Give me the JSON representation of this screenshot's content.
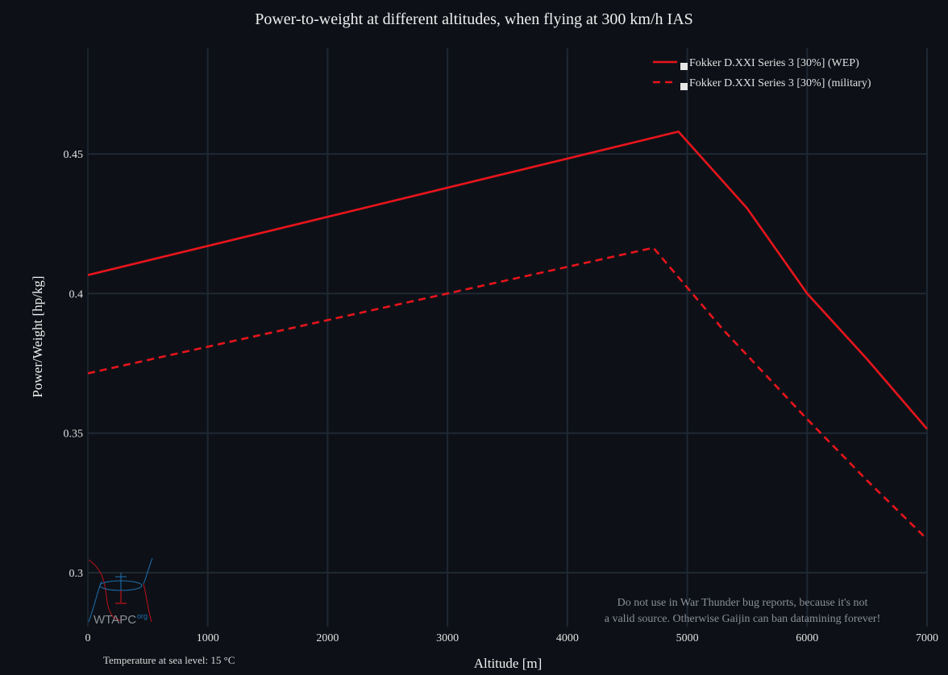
{
  "chart_data": {
    "type": "line",
    "title": "Power-to-weight at different altitudes, when flying at 300 km/h IAS",
    "xlabel": "Altitude [m]",
    "ylabel": "Power/Weight [hp/kg]",
    "xlim": [
      0,
      7000
    ],
    "ylim": [
      0.2815,
      0.488
    ],
    "xticks": [
      0,
      1000,
      2000,
      3000,
      4000,
      5000,
      6000,
      7000
    ],
    "yticks": [
      0.3,
      0.35,
      0.4,
      0.45
    ],
    "ytick_labels": [
      "0.3",
      "0.35",
      "0.4",
      "0.45"
    ],
    "grid": true,
    "legend_position": "top-right",
    "series": [
      {
        "name": "Fokker D.XXI Series 3 [30%] (WEP)",
        "style": "solid",
        "color": "#e8141c",
        "x": [
          0,
          4926,
          5500,
          6000,
          6500,
          7000
        ],
        "y": [
          0.4066,
          0.458,
          0.4305,
          0.4,
          0.3765,
          0.3515
        ]
      },
      {
        "name": "Fokker D.XXI Series 3 [30%] (military)",
        "style": "dashed",
        "color": "#e8141c",
        "x": [
          0,
          4717,
          5300,
          6000,
          6500,
          7000
        ],
        "y": [
          0.3714,
          0.4164,
          0.387,
          0.355,
          0.333,
          0.312
        ]
      }
    ]
  },
  "annotations": {
    "disclaimer_line1": "Do not use in War Thunder bug reports, because it's not",
    "disclaimer_line2": "a valid source. Otherwise Gaijin can ban datamining forever!",
    "temperature": "Temperature at sea level: 15 °C",
    "logo_text": "WTAPC",
    "logo_suffix": "org"
  },
  "colors": {
    "background": "#0d1117",
    "grid": "#1f2833",
    "series": "#e8141c"
  }
}
